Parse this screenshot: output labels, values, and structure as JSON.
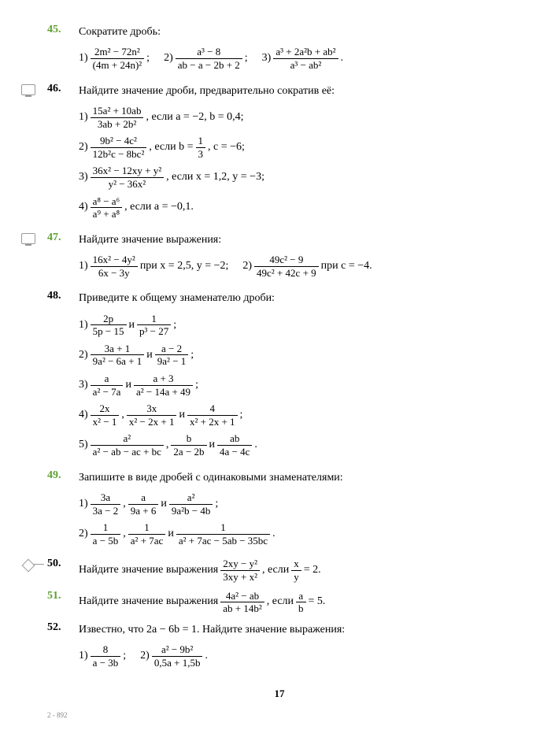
{
  "page_number": "17",
  "footer": "2 - 892",
  "colors": {
    "accent": "#5da030",
    "text": "#000000",
    "icon": "#999999"
  },
  "problems": [
    {
      "num": "45.",
      "accent": true,
      "icon": null,
      "title": "Сократите дробь:",
      "parts": [
        {
          "n": "1)",
          "frac": {
            "num": "2m² − 72n²",
            "den": "(4m + 24n)²"
          },
          "after": ";"
        },
        {
          "n": "2)",
          "frac": {
            "num": "a³ − 8",
            "den": "ab − a − 2b + 2"
          },
          "after": ";"
        },
        {
          "n": "3)",
          "frac": {
            "num": "a³ + 2a²b + ab²",
            "den": "a³ − ab²"
          },
          "after": "."
        }
      ],
      "inline": true
    },
    {
      "num": "46.",
      "accent": false,
      "icon": "screen",
      "title": "Найдите значение дроби, предварительно сократив её:",
      "parts": [
        {
          "n": "1)",
          "frac": {
            "num": "15a² + 10ab",
            "den": "3ab + 2b²"
          },
          "after": ", если a = −2, b = 0,4;"
        },
        {
          "n": "2)",
          "frac": {
            "num": "9b² − 4c²",
            "den": "12b²c − 8bc²"
          },
          "after": ", если b = ",
          "frac2": {
            "num": "1",
            "den": "3"
          },
          "after2": ", c = −6;"
        },
        {
          "n": "3)",
          "frac": {
            "num": "36x² − 12xy + y²",
            "den": "y² − 36x²"
          },
          "after": ", если x = 1,2, y = −3;"
        },
        {
          "n": "4)",
          "frac": {
            "num": "a⁸ − a⁶",
            "den": "a⁹ + a⁸"
          },
          "after": ", если a = −0,1."
        }
      ]
    },
    {
      "num": "47.",
      "accent": true,
      "icon": "screen",
      "title": "Найдите значение выражения:",
      "parts": [
        {
          "n": "1)",
          "frac": {
            "num": "16x² − 4y²",
            "den": "6x − 3y"
          },
          "after": " при x = 2,5, y = −2;"
        },
        {
          "n": "2)",
          "frac": {
            "num": "49c² − 9",
            "den": "49c² + 42c + 9"
          },
          "after": " при c = −4."
        }
      ],
      "inline": true
    },
    {
      "num": "48.",
      "accent": false,
      "icon": null,
      "title": "Приведите к общему знаменателю дроби:",
      "parts": [
        {
          "n": "1)",
          "fracs": [
            {
              "num": "2p",
              "den": "5p − 15"
            },
            {
              "num": "1",
              "den": "p³ − 27"
            }
          ],
          "join": " и ",
          "after": ";"
        },
        {
          "n": "2)",
          "fracs": [
            {
              "num": "3a + 1",
              "den": "9a² − 6a + 1"
            },
            {
              "num": "a − 2",
              "den": "9a² − 1"
            }
          ],
          "join": " и ",
          "after": ";"
        },
        {
          "n": "3)",
          "fracs": [
            {
              "num": "a",
              "den": "a² − 7a"
            },
            {
              "num": "a + 3",
              "den": "a² − 14a + 49"
            }
          ],
          "join": " и ",
          "after": ";"
        },
        {
          "n": "4)",
          "fracs": [
            {
              "num": "2x",
              "den": "x² − 1"
            },
            {
              "num": "3x",
              "den": "x² − 2x + 1"
            },
            {
              "num": "4",
              "den": "x² + 2x + 1"
            }
          ],
          "join3": [
            " , ",
            " и "
          ],
          "after": ";"
        },
        {
          "n": "5)",
          "fracs": [
            {
              "num": "a²",
              "den": "a² − ab − ac + bc"
            },
            {
              "num": "b",
              "den": "2a − 2b"
            },
            {
              "num": "ab",
              "den": "4a − 4c"
            }
          ],
          "join3": [
            " , ",
            " и "
          ],
          "after": "."
        }
      ]
    },
    {
      "num": "49.",
      "accent": true,
      "icon": null,
      "title": "Запишите в виде дробей с одинаковыми знаменателями:",
      "parts": [
        {
          "n": "1)",
          "fracs": [
            {
              "num": "3a",
              "den": "3a − 2"
            },
            {
              "num": "a",
              "den": "9a + 6"
            },
            {
              "num": "a²",
              "den": "9a²b − 4b"
            }
          ],
          "join3": [
            " , ",
            " и "
          ],
          "after": ";"
        },
        {
          "n": "2)",
          "fracs": [
            {
              "num": "1",
              "den": "a − 5b"
            },
            {
              "num": "1",
              "den": "a² + 7ac"
            },
            {
              "num": "1",
              "den": "a² + 7ac − 5ab − 35bc"
            }
          ],
          "join3": [
            " , ",
            " и "
          ],
          "after": "."
        }
      ]
    },
    {
      "num": "50.",
      "accent": false,
      "icon": "diamond",
      "line": true,
      "title": "Найдите значение выражения ",
      "inline_frac": {
        "num": "2xy − y²",
        "den": "3xy + x²"
      },
      "mid": ", если ",
      "inline_frac2": {
        "num": "x",
        "den": "y"
      },
      "tail": " = 2."
    },
    {
      "num": "51.",
      "accent": true,
      "icon": null,
      "title": "Найдите значение выражения ",
      "inline_frac": {
        "num": "4a² − ab",
        "den": "ab + 14b²"
      },
      "mid": ", если ",
      "inline_frac2": {
        "num": "a",
        "den": "b"
      },
      "tail": " = 5."
    },
    {
      "num": "52.",
      "accent": false,
      "icon": null,
      "title": "Известно, что 2a − 6b = 1. Найдите значение выражения:",
      "parts": [
        {
          "n": "1)",
          "frac": {
            "num": "8",
            "den": "a − 3b"
          },
          "after": ";"
        },
        {
          "n": "2)",
          "frac": {
            "num": "a² − 9b²",
            "den": "0,5a + 1,5b"
          },
          "after": "."
        }
      ],
      "inline": true
    }
  ]
}
